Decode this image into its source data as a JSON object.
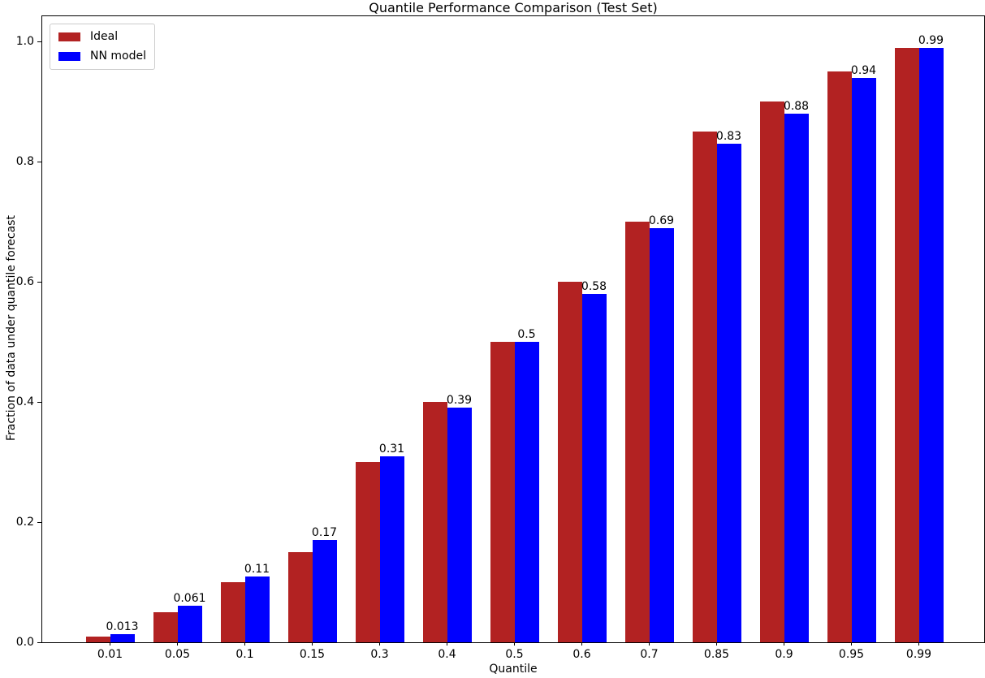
{
  "chart_data": {
    "type": "bar",
    "title": "Quantile Performance Comparison (Test Set)",
    "xlabel": "Quantile",
    "ylabel": "Fraction of data under quantile forecast",
    "categories": [
      "0.01",
      "0.05",
      "0.1",
      "0.15",
      "0.3",
      "0.4",
      "0.5",
      "0.6",
      "0.7",
      "0.85",
      "0.9",
      "0.95",
      "0.99"
    ],
    "series": [
      {
        "name": "Ideal",
        "color": "#B22222",
        "values": [
          0.01,
          0.05,
          0.1,
          0.15,
          0.3,
          0.4,
          0.5,
          0.6,
          0.7,
          0.85,
          0.9,
          0.95,
          0.99
        ]
      },
      {
        "name": "NN model",
        "color": "#0000FF",
        "values": [
          0.013,
          0.061,
          0.11,
          0.17,
          0.31,
          0.39,
          0.5,
          0.58,
          0.69,
          0.83,
          0.88,
          0.94,
          0.99
        ],
        "bar_labels": [
          "0.013",
          "0.061",
          "0.11",
          "0.17",
          "0.31",
          "0.39",
          "0.5",
          "0.58",
          "0.69",
          "0.83",
          "0.88",
          "0.94",
          "0.99"
        ]
      }
    ],
    "yticks": [
      "0.0",
      "0.2",
      "0.4",
      "0.6",
      "0.8",
      "1.0"
    ],
    "ylim": [
      0,
      1.042
    ],
    "grid": false,
    "legend_position": "upper left",
    "axis_color": "#000000",
    "background_color": "#ffffff"
  }
}
